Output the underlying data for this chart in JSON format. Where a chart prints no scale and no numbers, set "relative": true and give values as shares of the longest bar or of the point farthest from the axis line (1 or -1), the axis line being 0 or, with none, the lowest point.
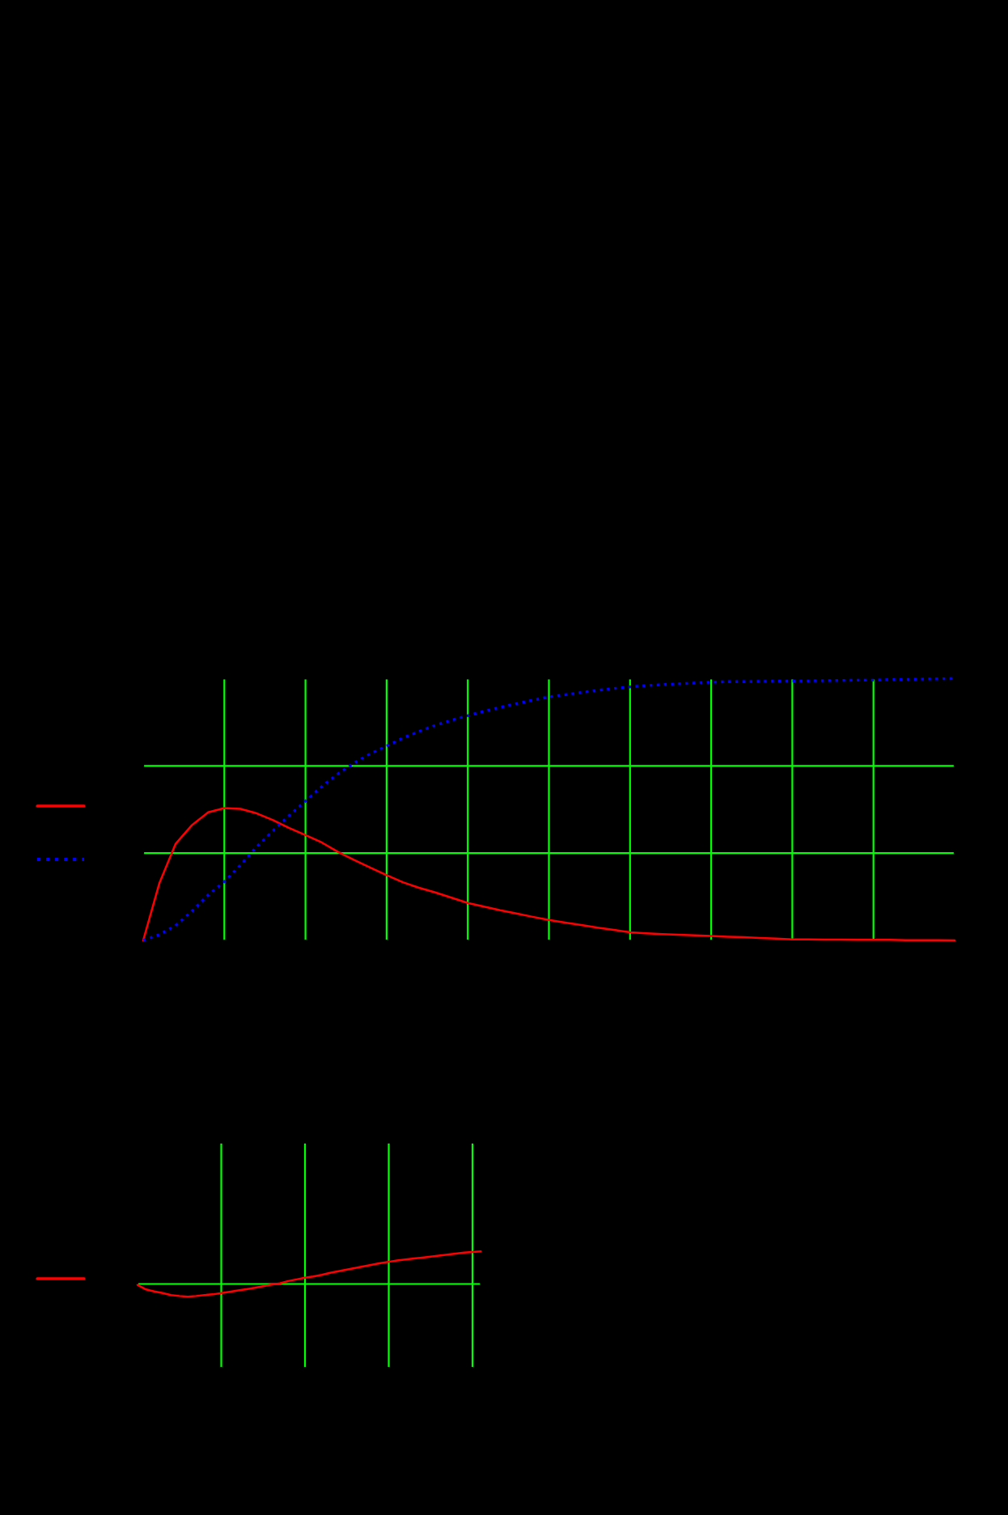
{
  "chart_data": [
    {
      "type": "line",
      "relative": true,
      "grid": true,
      "categories": [
        null,
        null,
        null,
        null,
        null,
        null,
        null,
        null,
        null,
        null,
        null,
        null,
        null,
        null,
        null,
        null,
        null,
        null,
        null,
        null,
        null,
        null,
        null,
        null,
        null,
        null,
        null,
        null,
        null,
        null,
        null,
        null,
        null,
        null,
        null,
        null,
        null,
        null,
        null,
        null,
        null,
        null,
        null,
        null,
        null,
        null,
        null,
        null,
        null,
        null,
        null
      ],
      "series": [
        {
          "color": "#ff0000",
          "line_style": "solid",
          "values": [
            0,
            0.219,
            0.369,
            0.44,
            0.489,
            0.505,
            0.502,
            0.485,
            0.459,
            0.429,
            0.402,
            0.374,
            0.338,
            0.307,
            0.278,
            0.249,
            0.222,
            0.201,
            0.183,
            0.163,
            0.143,
            0.129,
            0.115,
            0.103,
            0.09,
            0.078,
            0.068,
            0.059,
            0.049,
            0.04,
            0.031,
            0.027,
            0.024,
            0.022,
            0.019,
            0.017,
            0.014,
            0.012,
            0.009,
            0.007,
            0.004,
            0.004,
            0.003,
            0.003,
            0.002,
            0.002,
            0.002,
            0.001,
            0.001,
            0.001,
            0
          ]
        },
        {
          "color": "#0000ff",
          "line_style": "dotted",
          "values": [
            0,
            0.022,
            0.057,
            0.111,
            0.173,
            0.224,
            0.288,
            0.358,
            0.419,
            0.477,
            0.532,
            0.587,
            0.636,
            0.677,
            0.713,
            0.742,
            0.773,
            0.798,
            0.821,
            0.841,
            0.858,
            0.875,
            0.89,
            0.904,
            0.917,
            0.93,
            0.938,
            0.947,
            0.955,
            0.962,
            0.968,
            0.973,
            0.977,
            0.98,
            0.983,
            0.986,
            0.988,
            0.988,
            0.989,
            0.99,
            0.99,
            0.991,
            0.992,
            0.993,
            0.994,
            0.994,
            0.996,
            0.997,
            0.998,
            0.999,
            1
          ]
        }
      ]
    },
    {
      "type": "line",
      "relative": true,
      "grid": true,
      "categories": [
        null,
        null,
        null,
        null,
        null,
        null,
        null,
        null,
        null,
        null,
        null,
        null,
        null,
        null,
        null,
        null,
        null,
        null,
        null,
        null,
        null,
        null,
        null,
        null,
        null,
        null,
        null,
        null,
        null,
        null,
        null,
        null,
        null,
        null,
        null,
        null,
        null,
        null,
        null,
        null,
        null,
        null
      ],
      "series": [
        {
          "color": "#ff0000",
          "line_style": "solid",
          "values": [
            -0.03,
            -0.17,
            -0.23,
            -0.28,
            -0.34,
            -0.37,
            -0.39,
            -0.37,
            -0.34,
            -0.32,
            -0.28,
            -0.24,
            -0.2,
            -0.16,
            -0.12,
            -0.07,
            -0.02,
            0.02,
            0.09,
            0.14,
            0.19,
            0.23,
            0.28,
            0.34,
            0.39,
            0.44,
            0.49,
            0.54,
            0.59,
            0.64,
            0.68,
            0.72,
            0.75,
            0.78,
            0.81,
            0.84,
            0.87,
            0.9,
            0.93,
            0.96,
            0.98,
            1
          ]
        }
      ]
    }
  ]
}
